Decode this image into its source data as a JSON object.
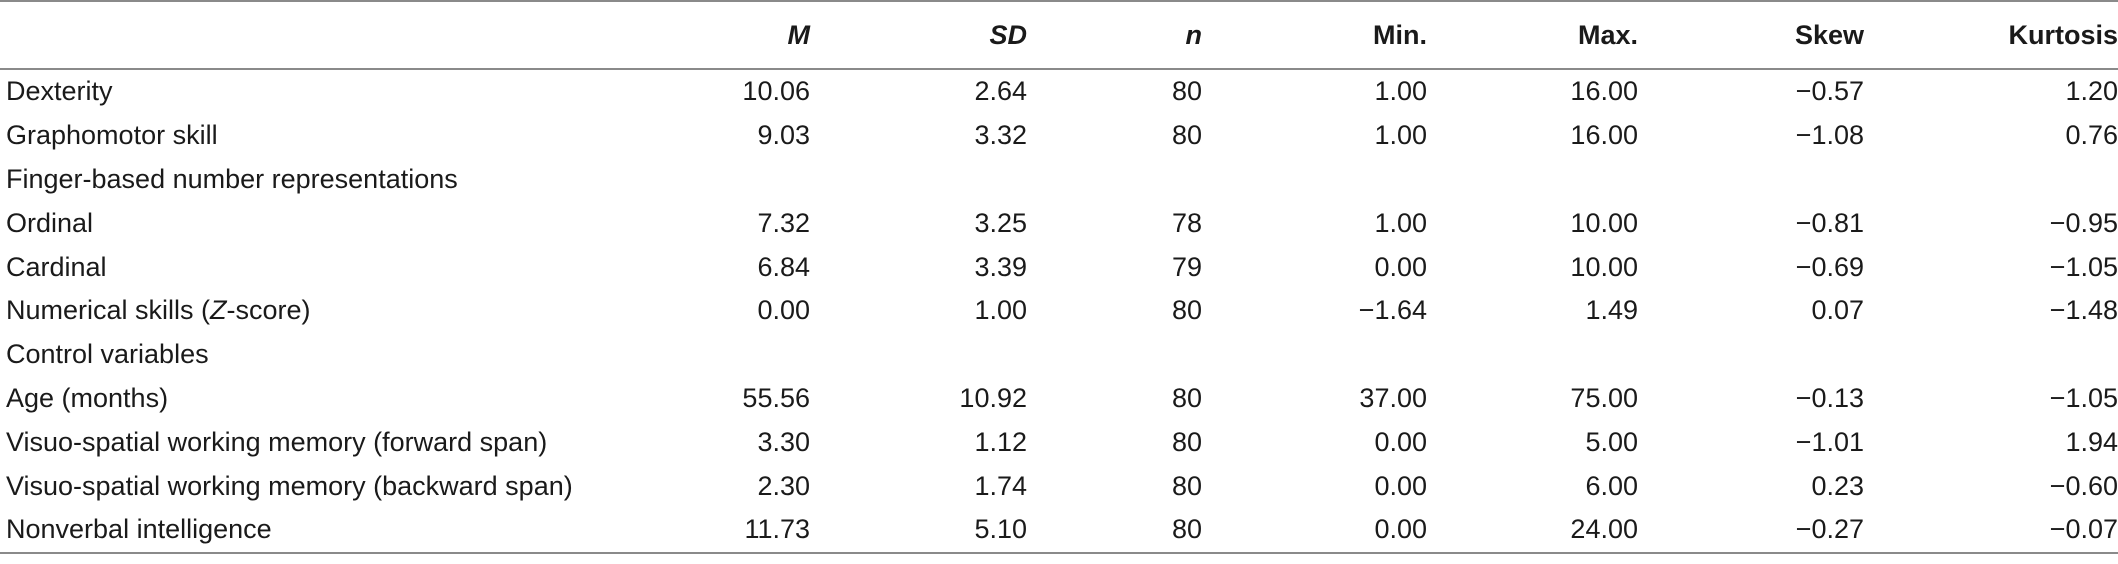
{
  "table": {
    "headers": [
      "",
      "M",
      "SD",
      "n",
      "Min.",
      "Max.",
      "Skew",
      "Kurtosis"
    ],
    "rows": [
      {
        "label": "Dexterity",
        "values": [
          "10.06",
          "2.64",
          "80",
          "1.00",
          "16.00",
          "−0.57",
          "1.20"
        ]
      },
      {
        "label": "Graphomotor skill",
        "values": [
          "9.03",
          "3.32",
          "80",
          "1.00",
          "16.00",
          "−1.08",
          "0.76"
        ]
      },
      {
        "label": "Finger-based number representations",
        "values": [
          "",
          "",
          "",
          "",
          "",
          "",
          ""
        ]
      },
      {
        "label": "Ordinal",
        "values": [
          "7.32",
          "3.25",
          "78",
          "1.00",
          "10.00",
          "−0.81",
          "−0.95"
        ]
      },
      {
        "label": "Cardinal",
        "values": [
          "6.84",
          "3.39",
          "79",
          "0.00",
          "10.00",
          "−0.69",
          "−1.05"
        ]
      },
      {
        "label": "Numerical skills (Z-score)",
        "values": [
          "0.00",
          "1.00",
          "80",
          "−1.64",
          "1.49",
          "0.07",
          "−1.48"
        ]
      },
      {
        "label": "Control variables",
        "values": [
          "",
          "",
          "",
          "",
          "",
          "",
          ""
        ]
      },
      {
        "label": "Age (months)",
        "values": [
          "55.56",
          "10.92",
          "80",
          "37.00",
          "75.00",
          "−0.13",
          "−1.05"
        ]
      },
      {
        "label": "Visuo-spatial working memory (forward span)",
        "values": [
          "3.30",
          "1.12",
          "80",
          "0.00",
          "5.00",
          "−1.01",
          "1.94"
        ]
      },
      {
        "label": "Visuo-spatial working memory (backward span)",
        "values": [
          "2.30",
          "1.74",
          "80",
          "0.00",
          "6.00",
          "0.23",
          "−0.60"
        ]
      },
      {
        "label": "Nonverbal intelligence",
        "values": [
          "11.73",
          "5.10",
          "80",
          "0.00",
          "24.00",
          "−0.27",
          "−0.07"
        ]
      }
    ]
  }
}
